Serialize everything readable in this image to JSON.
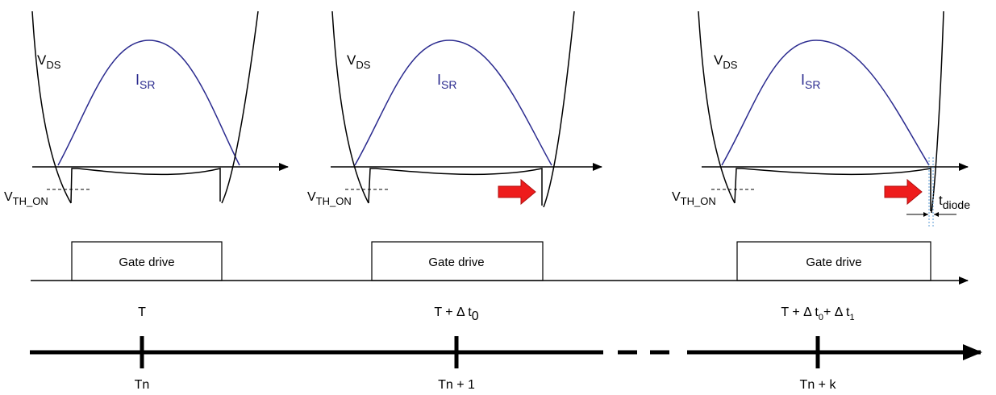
{
  "panels": [
    {
      "vds_main": "V",
      "vds_sub": "DS",
      "isr_main": "I",
      "isr_sub": "SR",
      "vth_main": "V",
      "vth_sub": "TH_ON",
      "gate_label": "Gate drive",
      "time_label": "T",
      "period_label": "Tn"
    },
    {
      "vds_main": "V",
      "vds_sub": "DS",
      "isr_main": "I",
      "isr_sub": "SR",
      "vth_main": "V",
      "vth_sub": "TH_ON",
      "gate_label": "Gate drive",
      "time_label_main": "T + Δ t",
      "time_label_sub": "0",
      "period_label": "Tn + 1"
    },
    {
      "vds_main": "V",
      "vds_sub": "DS",
      "isr_main": "I",
      "isr_sub": "SR",
      "vth_main": "V",
      "vth_sub": "TH_ON",
      "gate_label": "Gate drive",
      "time_label_main": "T + Δ t",
      "time_label_sub0": "0",
      "time_label_mid": "+ Δ t",
      "time_label_sub1": "1",
      "period_label": "Tn + k",
      "tdiode_main": "t",
      "tdiode_sub": "diode"
    }
  ],
  "colors": {
    "current_curve": "#2b2b8f",
    "arrow_fill": "#ee1c1c",
    "tdiode_guides": "#5b9bd5"
  }
}
